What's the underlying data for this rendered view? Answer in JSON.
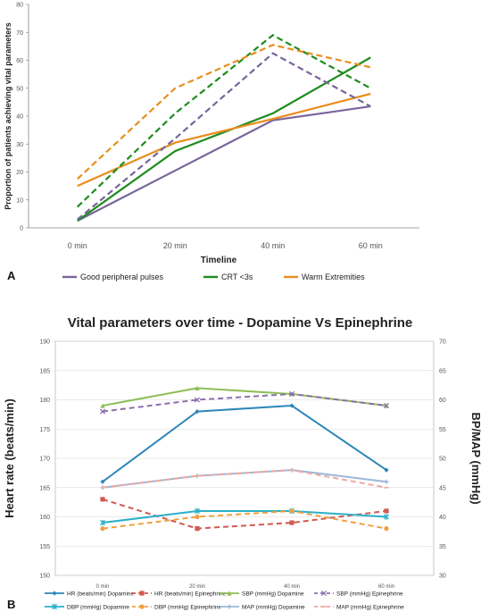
{
  "panel_a_label": "A",
  "panel_b_label": "B",
  "chart_data": [
    {
      "type": "line",
      "title": "",
      "xlabel": "Timeline",
      "ylabel": "Proportion of patients achieving vital parameters",
      "categories": [
        "0 min",
        "20 min",
        "40 min",
        "60 min"
      ],
      "ylim": [
        0,
        80
      ],
      "yticks": [
        "0",
        "10",
        "20",
        "30",
        "40",
        "50",
        "60",
        "70",
        "80"
      ],
      "legend": "bottom",
      "series": [
        {
          "name": "Good peripheral pulses",
          "color": "#7a659c",
          "dashed": false,
          "values": [
            2.5,
            20.5,
            38.5,
            43.5
          ],
          "in_legend": true
        },
        {
          "name": "CRT <3s",
          "color": "#1e8c1e",
          "dashed": false,
          "values": [
            2.5,
            27.5,
            41,
            61
          ],
          "in_legend": true
        },
        {
          "name": "Warm Extremities",
          "color": "#e88e1e",
          "dashed": false,
          "values": [
            15,
            30.5,
            39,
            48
          ],
          "in_legend": true
        },
        {
          "name": "",
          "color": "#7a659c",
          "dashed": true,
          "values": [
            3,
            32,
            62.5,
            43.5
          ],
          "in_legend": false
        },
        {
          "name": "",
          "color": "#1e8c1e",
          "dashed": true,
          "values": [
            7.5,
            41,
            69,
            50
          ],
          "in_legend": false
        },
        {
          "name": "",
          "color": "#e88e1e",
          "dashed": true,
          "values": [
            17.5,
            50,
            65.5,
            57.5
          ],
          "in_legend": false
        }
      ]
    },
    {
      "type": "line",
      "title": "Vital parameters over time - Dopamine Vs Epinephrine",
      "xlabel": "",
      "ylabel": "Heart rate (beats/min)",
      "y2label": "BP/MAP (mmHg)",
      "categories": [
        "0 min",
        "20 min",
        "40 min",
        "60 min"
      ],
      "ylim": [
        150,
        190
      ],
      "y2lim": [
        30,
        70
      ],
      "yticks": [
        "150",
        "155",
        "160",
        "165",
        "170",
        "175",
        "180",
        "185",
        "190"
      ],
      "y2ticks": [
        "30",
        "35",
        "40",
        "45",
        "50",
        "55",
        "60",
        "65",
        "70"
      ],
      "legend": "bottom",
      "series": [
        {
          "name": "HR (beats/min) Dopamine",
          "axis": "left",
          "color": "#2e86b8",
          "dashed": false,
          "marker": "diamond",
          "values": [
            166,
            178,
            179,
            168
          ]
        },
        {
          "name": "HR (beats/min) Epinephrine",
          "axis": "left",
          "color": "#d05a50",
          "dashed": true,
          "marker": "square",
          "values": [
            163,
            158,
            159,
            161
          ]
        },
        {
          "name": "SBP (mmHg) Dopamine",
          "axis": "right",
          "color": "#8fbe58",
          "dashed": false,
          "marker": "triangle",
          "values": [
            59,
            62,
            61,
            59
          ]
        },
        {
          "name": "SBP (mmHg) Epinephrine",
          "axis": "right",
          "color": "#8a6fac",
          "dashed": true,
          "marker": "x",
          "values": [
            58,
            60,
            61,
            59
          ]
        },
        {
          "name": "DBP (mmHg) Dopamine",
          "axis": "right",
          "color": "#2ab0c8",
          "dashed": false,
          "marker": "star",
          "values": [
            39,
            41,
            41,
            40
          ]
        },
        {
          "name": "DBP (mmHg) Epinephrine",
          "axis": "right",
          "color": "#f0a040",
          "dashed": true,
          "marker": "circle",
          "values": [
            38,
            40,
            41,
            38
          ]
        },
        {
          "name": "MAP (mmHg) Dopamine",
          "axis": "right",
          "color": "#9ab8d8",
          "dashed": false,
          "marker": "plus",
          "values": [
            45,
            47,
            48,
            46
          ]
        },
        {
          "name": "MAP (mmHg) Epinephrine",
          "axis": "right",
          "color": "#f0a8a0",
          "dashed": true,
          "marker": "dash",
          "values": [
            45,
            47,
            48,
            45
          ]
        }
      ]
    }
  ]
}
